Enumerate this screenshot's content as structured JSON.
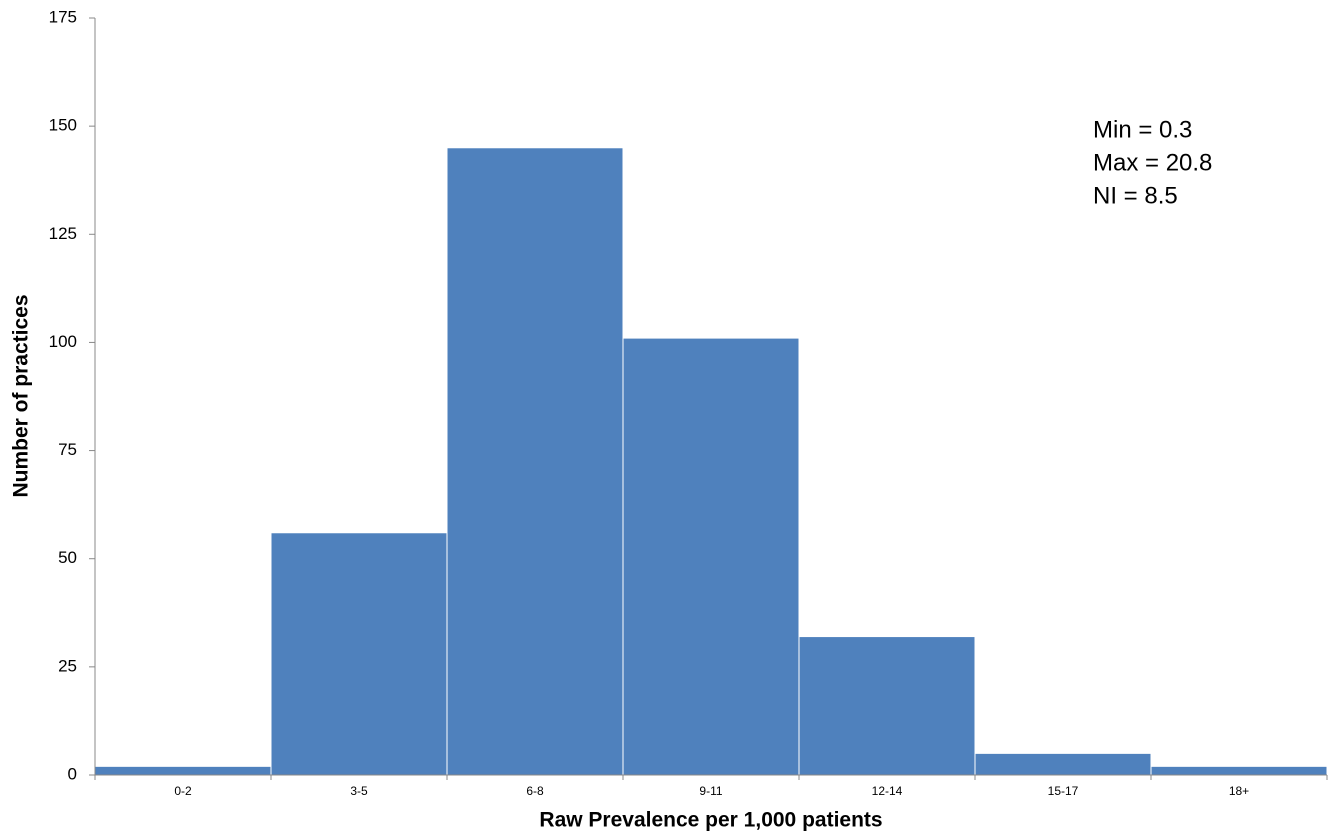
{
  "chart_data": {
    "type": "bar",
    "categories": [
      "0-2",
      "3-5",
      "6-8",
      "9-11",
      "12-14",
      "15-17",
      "18+"
    ],
    "values": [
      2,
      56,
      145,
      101,
      32,
      5,
      2
    ],
    "color": "#4f81bd",
    "xlabel": "Raw Prevalence per 1,000 patients",
    "ylabel": "Number of practices",
    "ylim": [
      0,
      175
    ],
    "yticks": [
      0,
      25,
      50,
      75,
      100,
      125,
      150,
      175
    ],
    "annotations": [
      "Min = 0.3",
      "Max = 20.8",
      "NI = 8.5"
    ]
  }
}
